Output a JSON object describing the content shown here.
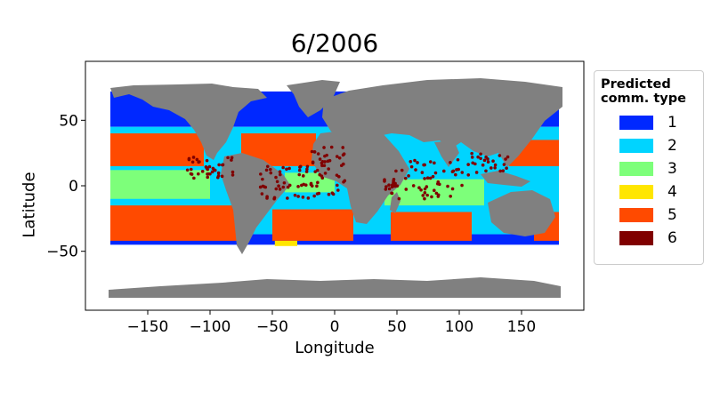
{
  "title": "6/2006",
  "chart_data": {
    "type": "scatter",
    "xlabel": "Longitude",
    "ylabel": "Latitude",
    "xlim": [
      -200,
      200
    ],
    "ylim": [
      -95,
      95
    ],
    "xticks": [
      -150,
      -100,
      -50,
      0,
      50,
      100,
      150
    ],
    "yticks": [
      50,
      0,
      -50
    ],
    "xtick_labels": [
      "−150",
      "−100",
      "−50",
      "0",
      "50",
      "100",
      "150"
    ],
    "ytick_labels": [
      "50",
      "0",
      "−50"
    ],
    "land_color": "#808080",
    "legend": {
      "title_line1": "Predicted",
      "title_line2": "comm. type",
      "placement": "outside-right",
      "entries": [
        {
          "label": "1",
          "color": "#0028ff"
        },
        {
          "label": "2",
          "color": "#00d4ff"
        },
        {
          "label": "3",
          "color": "#7dff7a"
        },
        {
          "label": "4",
          "color": "#ffe600"
        },
        {
          "label": "5",
          "color": "#ff4a00"
        },
        {
          "label": "6",
          "color": "#800000"
        }
      ]
    },
    "regions": [
      {
        "type": "1",
        "lon": [
          -180,
          180
        ],
        "lat": [
          45,
          72
        ]
      },
      {
        "type": "1",
        "lon": [
          -180,
          180
        ],
        "lat": [
          -45,
          -37
        ]
      },
      {
        "type": "2",
        "lon": [
          -180,
          180
        ],
        "lat": [
          -37,
          45
        ]
      },
      {
        "type": "5",
        "lon": [
          -180,
          -105
        ],
        "lat": [
          15,
          40
        ]
      },
      {
        "type": "5",
        "lon": [
          -75,
          -15
        ],
        "lat": [
          15,
          40
        ]
      },
      {
        "type": "5",
        "lon": [
          140,
          180
        ],
        "lat": [
          15,
          35
        ]
      },
      {
        "type": "3",
        "lon": [
          -180,
          -100
        ],
        "lat": [
          -10,
          12
        ]
      },
      {
        "type": "3",
        "lon": [
          -40,
          0
        ],
        "lat": [
          -5,
          10
        ]
      },
      {
        "type": "3",
        "lon": [
          40,
          120
        ],
        "lat": [
          -15,
          5
        ]
      },
      {
        "type": "5",
        "lon": [
          -180,
          -75
        ],
        "lat": [
          -42,
          -15
        ]
      },
      {
        "type": "5",
        "lon": [
          -50,
          15
        ],
        "lat": [
          -42,
          -18
        ]
      },
      {
        "type": "5",
        "lon": [
          45,
          110
        ],
        "lat": [
          -42,
          -20
        ]
      },
      {
        "type": "5",
        "lon": [
          160,
          180
        ],
        "lat": [
          -42,
          -20
        ]
      },
      {
        "type": "4",
        "lon": [
          -48,
          -30
        ],
        "lat": [
          -46,
          -42
        ]
      }
    ]
  }
}
